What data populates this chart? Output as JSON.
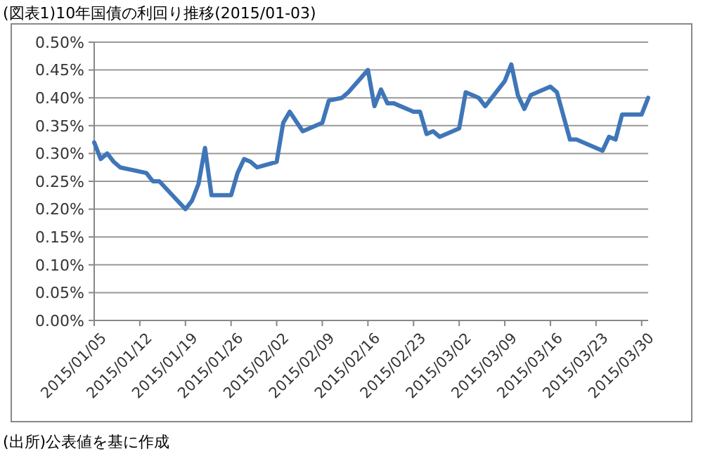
{
  "chart_data": {
    "type": "line",
    "title": "(図表1)10年国債の利回り推移(2015/01-03)",
    "annotations": [
      "(出所)公表値を基に作成"
    ],
    "x": [
      "2015-01-05",
      "2015-01-06",
      "2015-01-07",
      "2015-01-08",
      "2015-01-09",
      "2015-01-13",
      "2015-01-14",
      "2015-01-15",
      "2015-01-19",
      "2015-01-20",
      "2015-01-21",
      "2015-01-22",
      "2015-01-23",
      "2015-01-26",
      "2015-01-27",
      "2015-01-28",
      "2015-01-29",
      "2015-01-30",
      "2015-02-02",
      "2015-02-03",
      "2015-02-04",
      "2015-02-06",
      "2015-02-09",
      "2015-02-10",
      "2015-02-12",
      "2015-02-13",
      "2015-02-16",
      "2015-02-17",
      "2015-02-18",
      "2015-02-19",
      "2015-02-20",
      "2015-02-23",
      "2015-02-24",
      "2015-02-25",
      "2015-02-26",
      "2015-02-27",
      "2015-03-02",
      "2015-03-03",
      "2015-03-05",
      "2015-03-06",
      "2015-03-09",
      "2015-03-10",
      "2015-03-11",
      "2015-03-12",
      "2015-03-13",
      "2015-03-16",
      "2015-03-17",
      "2015-03-19",
      "2015-03-20",
      "2015-03-24",
      "2015-03-25",
      "2015-03-26",
      "2015-03-27",
      "2015-03-30",
      "2015-03-31"
    ],
    "series": [
      {
        "color": "#3f76b8",
        "values": [
          0.32,
          0.29,
          0.3,
          0.285,
          0.275,
          0.265,
          0.25,
          0.25,
          0.2,
          0.215,
          0.245,
          0.31,
          0.225,
          0.225,
          0.265,
          0.29,
          0.285,
          0.275,
          0.285,
          0.355,
          0.375,
          0.34,
          0.355,
          0.395,
          0.4,
          0.41,
          0.45,
          0.385,
          0.415,
          0.39,
          0.39,
          0.375,
          0.375,
          0.335,
          0.34,
          0.33,
          0.345,
          0.41,
          0.4,
          0.385,
          0.43,
          0.46,
          0.405,
          0.38,
          0.405,
          0.42,
          0.41,
          0.325,
          0.325,
          0.305,
          0.33,
          0.325,
          0.37,
          0.37,
          0.4
        ]
      }
    ],
    "xlim": [
      "2015-01-05",
      "2015-03-31"
    ],
    "xticks": [
      {
        "value": "2015-01-05",
        "label": "2015/01/05"
      },
      {
        "value": "2015-01-12",
        "label": "2015/01/12"
      },
      {
        "value": "2015-01-19",
        "label": "2015/01/19"
      },
      {
        "value": "2015-01-26",
        "label": "2015/01/26"
      },
      {
        "value": "2015-02-02",
        "label": "2015/02/02"
      },
      {
        "value": "2015-02-09",
        "label": "2015/02/09"
      },
      {
        "value": "2015-02-16",
        "label": "2015/02/16"
      },
      {
        "value": "2015-02-23",
        "label": "2015/02/23"
      },
      {
        "value": "2015-03-02",
        "label": "2015/03/02"
      },
      {
        "value": "2015-03-09",
        "label": "2015/03/09"
      },
      {
        "value": "2015-03-16",
        "label": "2015/03/16"
      },
      {
        "value": "2015-03-23",
        "label": "2015/03/23"
      },
      {
        "value": "2015-03-30",
        "label": "2015/03/30"
      }
    ],
    "ylim": [
      0,
      0.5
    ],
    "yticks": [
      {
        "value": 0,
        "label": "0.00%"
      },
      {
        "value": 0.05,
        "label": "0.05%"
      },
      {
        "value": 0.1,
        "label": "0.10%"
      },
      {
        "value": 0.15,
        "label": "0.15%"
      },
      {
        "value": 0.2,
        "label": "0.20%"
      },
      {
        "value": 0.25,
        "label": "0.25%"
      },
      {
        "value": 0.3,
        "label": "0.30%"
      },
      {
        "value": 0.35,
        "label": "0.35%"
      },
      {
        "value": 0.4,
        "label": "0.40%"
      },
      {
        "value": 0.45,
        "label": "0.45%"
      },
      {
        "value": 0.5,
        "label": "0.50%"
      }
    ],
    "grid": "y",
    "marker": "none",
    "line_style": "solid"
  }
}
